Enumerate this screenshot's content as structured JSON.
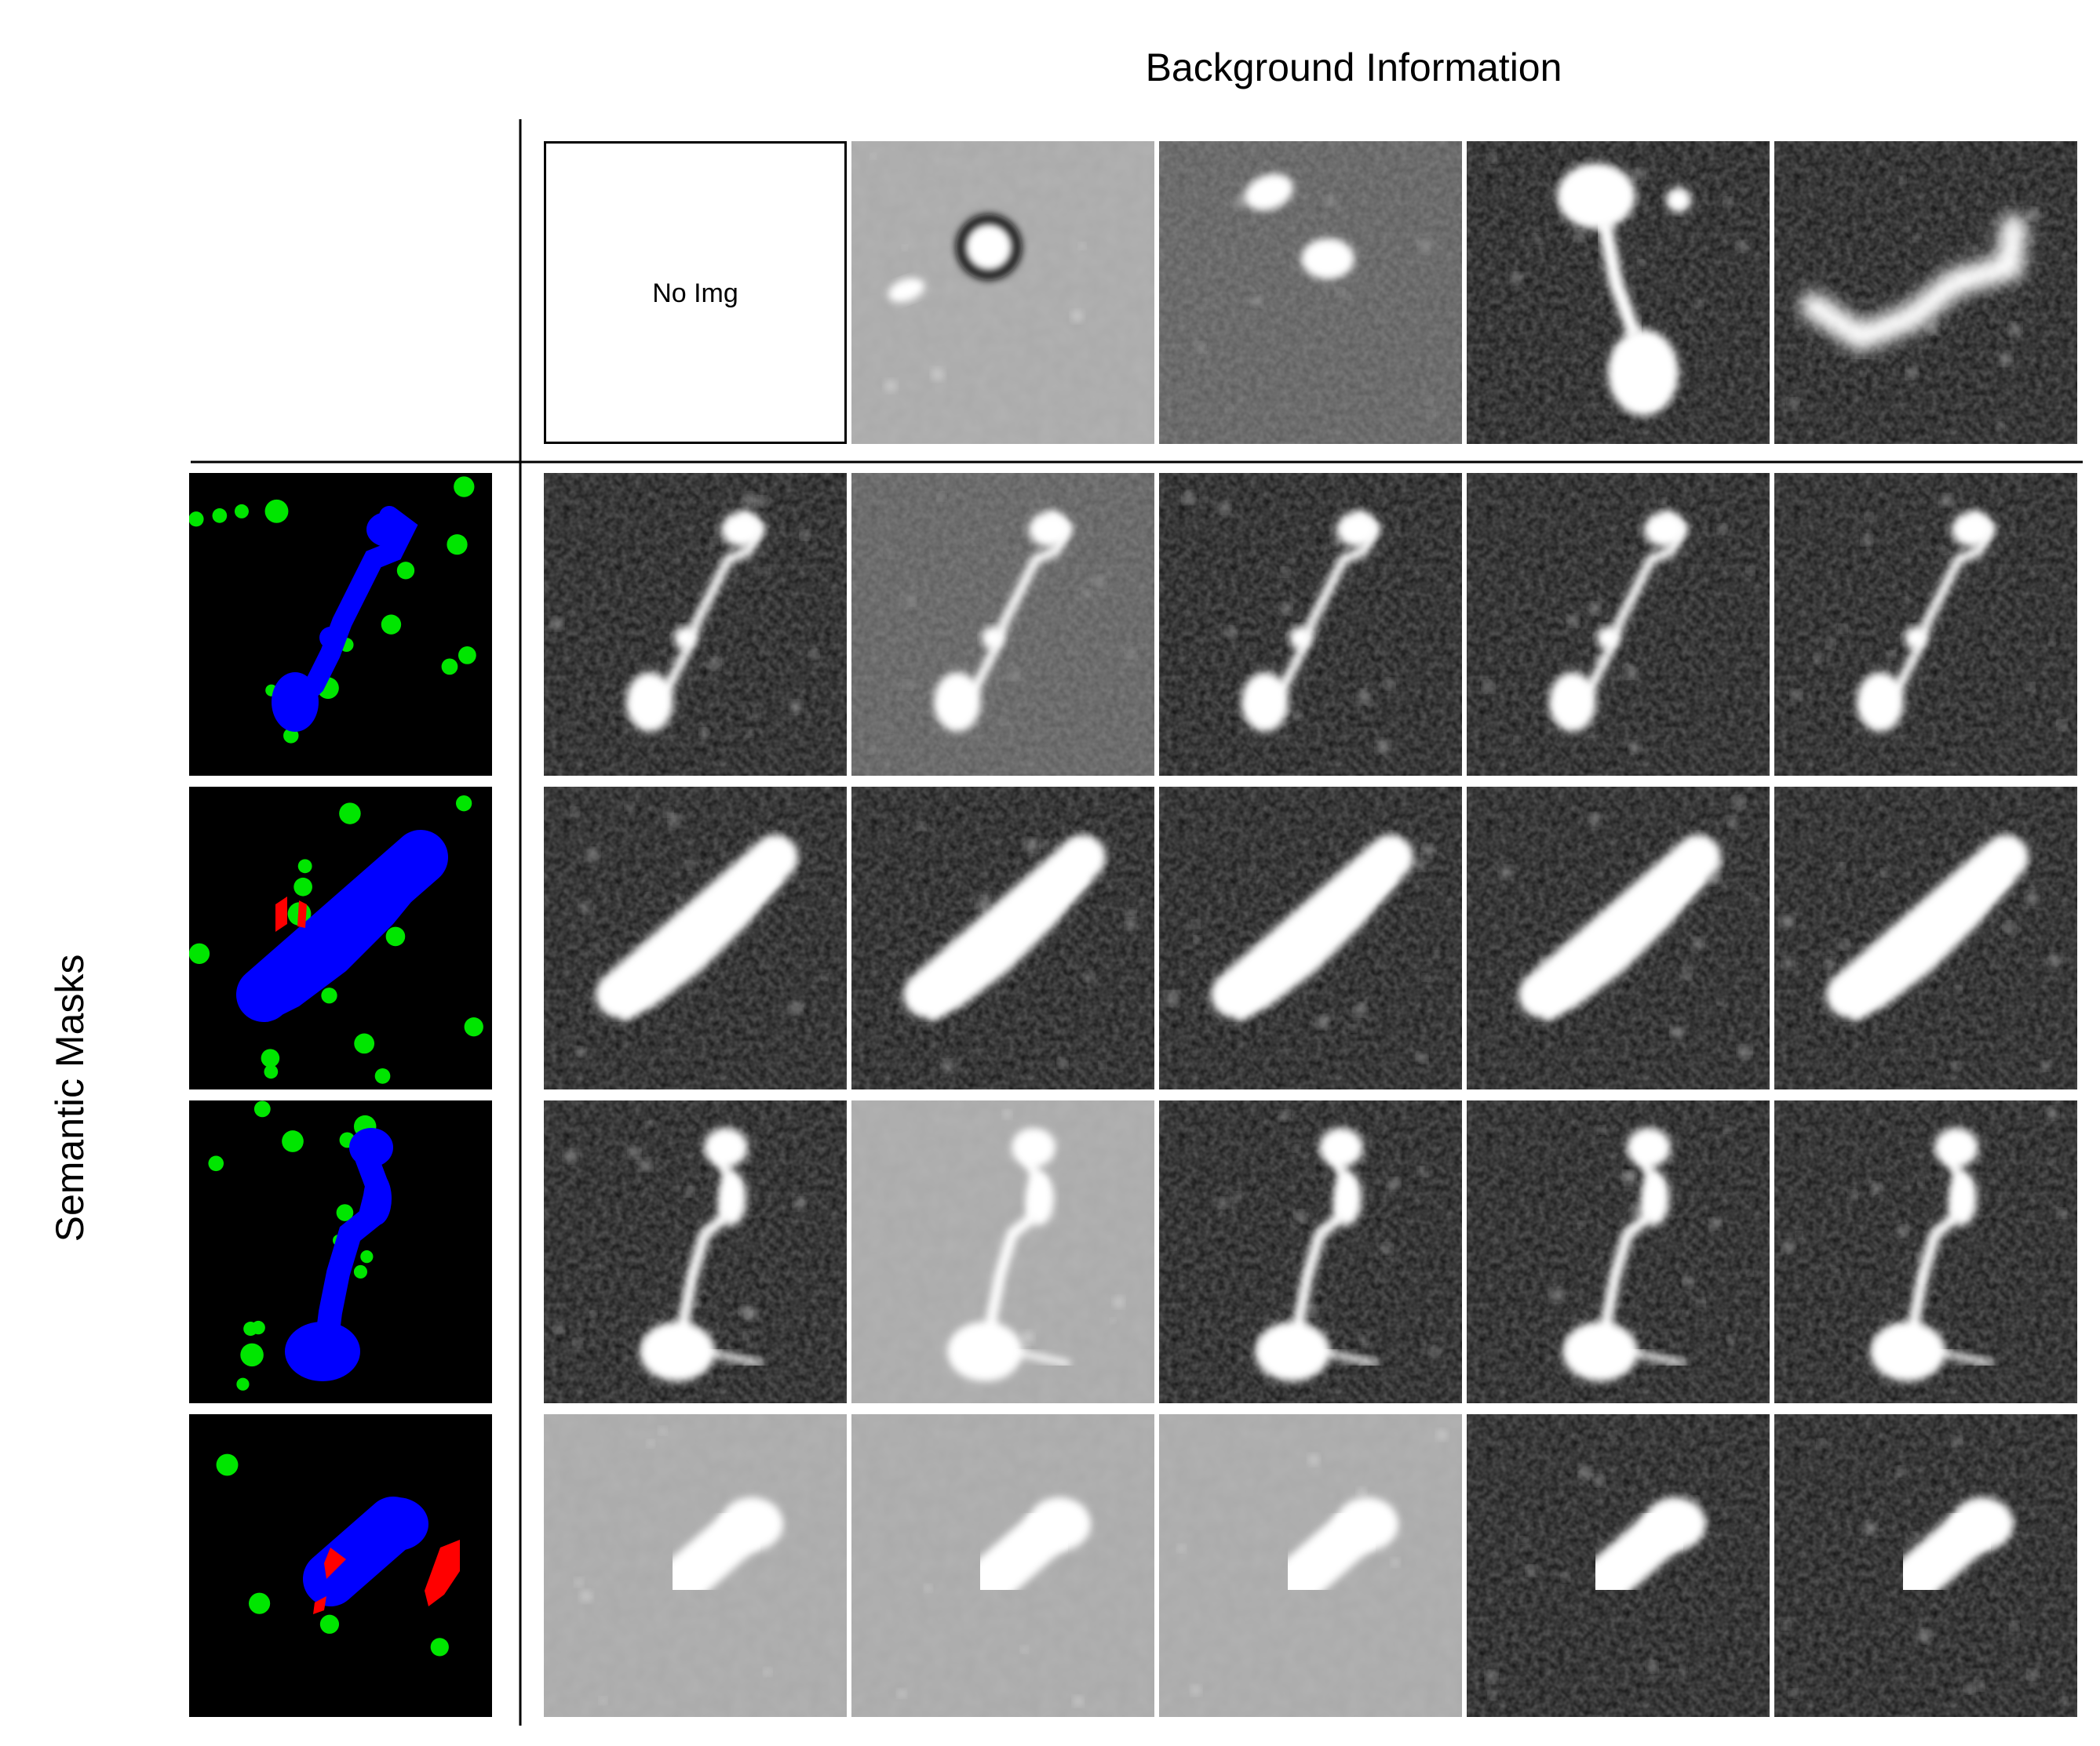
{
  "figure": {
    "column_header": "Background Information",
    "row_header": "Semantic Masks",
    "placeholder_text": "No Img",
    "colors": {
      "mask_background": "#000000",
      "extended_source": "#0000ff",
      "compact_source": "#00e600",
      "spurious_source": "#ff0000",
      "radio_background": "#111111",
      "emission": "#ffffff"
    },
    "background_row": [
      {
        "kind": "placeholder"
      },
      {
        "kind": "image",
        "tone": "light"
      },
      {
        "kind": "image",
        "tone": "mid"
      },
      {
        "kind": "image",
        "tone": "dark"
      },
      {
        "kind": "image",
        "tone": "dark"
      }
    ],
    "rows": [
      {
        "mask_classes": [
          "extended",
          "compact"
        ],
        "tones": [
          "dark",
          "mid",
          "dark",
          "dark",
          "dark"
        ]
      },
      {
        "mask_classes": [
          "extended",
          "compact",
          "spurious"
        ],
        "tones": [
          "dark",
          "dark",
          "dark",
          "dark",
          "dark"
        ]
      },
      {
        "mask_classes": [
          "extended",
          "compact"
        ],
        "tones": [
          "dark",
          "light",
          "dark",
          "dark",
          "dark"
        ]
      },
      {
        "mask_classes": [
          "extended",
          "compact",
          "spurious"
        ],
        "tones": [
          "light",
          "light",
          "light",
          "dark",
          "dark"
        ]
      }
    ]
  }
}
